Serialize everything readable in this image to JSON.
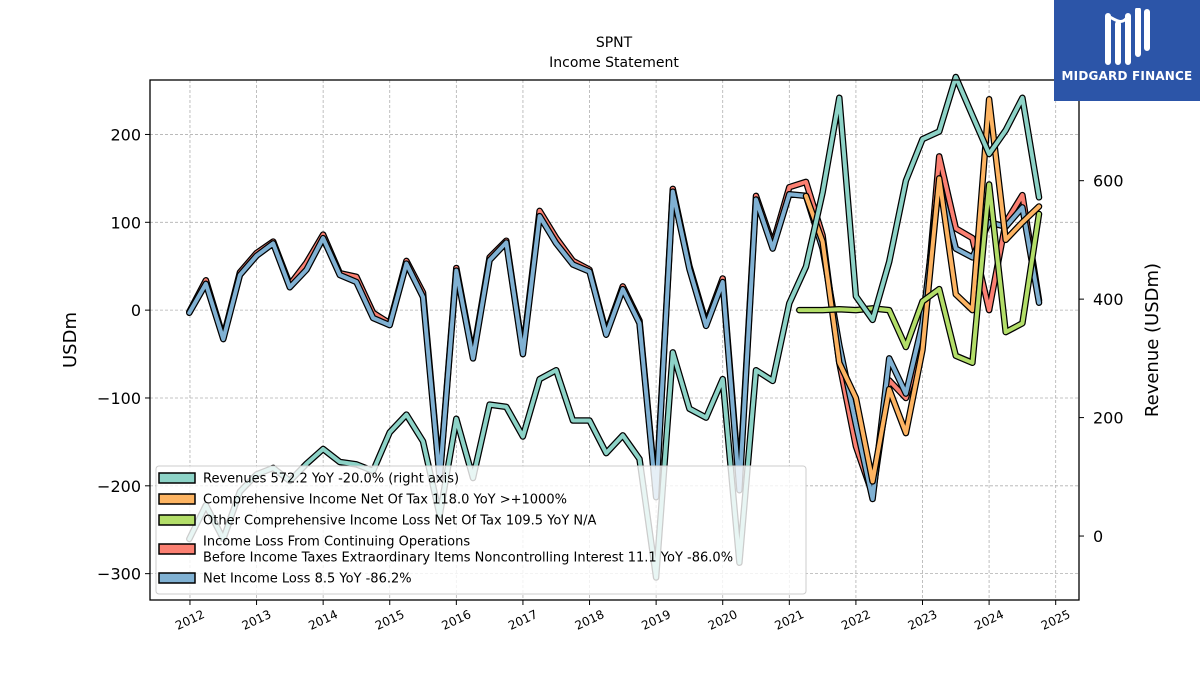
{
  "chart_data": {
    "type": "line",
    "title": "SPNT",
    "subtitle": "Income Statement",
    "ylabel": "USDm",
    "y2label": "Revenue (USDm)",
    "ylim": [
      -330,
      262
    ],
    "y2lim": [
      -108,
      770
    ],
    "yticks": [
      -300,
      -200,
      -100,
      0,
      100,
      200
    ],
    "yticklabels": [
      "−300",
      "−200",
      "−100",
      "0",
      "100",
      "200"
    ],
    "y2ticks": [
      0,
      200,
      400,
      600
    ],
    "y2ticklabels": [
      "0",
      "200",
      "400",
      "600"
    ],
    "xlim": [
      2011.4,
      2025.35
    ],
    "xticks": [
      2012,
      2013,
      2014,
      2015,
      2016,
      2017,
      2018,
      2019,
      2020,
      2021,
      2022,
      2023,
      2024,
      2025
    ],
    "xticklabels": [
      "2012",
      "2013",
      "2014",
      "2015",
      "2016",
      "2017",
      "2018",
      "2019",
      "2020",
      "2021",
      "2022",
      "2023",
      "2024",
      "2025"
    ],
    "grid": true,
    "legend_placement": "lower-left",
    "series": [
      {
        "name": "Revenues  572.2 YoY -20.0% (right axis)",
        "axis": "right",
        "color": "#8dd3c7",
        "x": [
          2011.99,
          2012.24,
          2012.5,
          2012.75,
          2013.0,
          2013.25,
          2013.5,
          2013.75,
          2014.0,
          2014.25,
          2014.5,
          2014.75,
          2015.0,
          2015.25,
          2015.5,
          2015.75,
          2016.0,
          2016.25,
          2016.5,
          2016.75,
          2017.0,
          2017.25,
          2017.5,
          2017.75,
          2018.0,
          2018.25,
          2018.5,
          2018.75,
          2019.0,
          2019.25,
          2019.5,
          2019.75,
          2020.0,
          2020.25,
          2020.5,
          2020.75,
          2021.0,
          2021.25,
          2021.5,
          2021.75,
          2022.0,
          2022.25,
          2022.5,
          2022.75,
          2023.0,
          2023.25,
          2023.5,
          2023.75,
          2024.0,
          2024.25,
          2024.5,
          2024.75
        ],
        "values": [
          -5,
          52,
          -5,
          75,
          104,
          115,
          93,
          122,
          147,
          125,
          121,
          110,
          175,
          205,
          160,
          35,
          198,
          98,
          222,
          218,
          168,
          265,
          280,
          195,
          195,
          140,
          170,
          130,
          -70,
          310,
          215,
          200,
          265,
          -45,
          280,
          262,
          393,
          455,
          580,
          740,
          405,
          365,
          463,
          600,
          670,
          683,
          775,
          710,
          645,
          685,
          740,
          572
        ]
      },
      {
        "name": "Comprehensive Income Net Of Tax  118.0 YoY >+1000%",
        "axis": "left",
        "color": "#fdb462",
        "x": [
          2021.25,
          2021.5,
          2021.75,
          2022.0,
          2022.25,
          2022.5,
          2022.75,
          2023.0,
          2023.25,
          2023.5,
          2023.75,
          2024.0,
          2024.25,
          2024.5,
          2024.75
        ],
        "values": [
          130,
          78,
          -60,
          -100,
          -195,
          -90,
          -140,
          -45,
          150,
          18,
          0,
          240,
          80,
          100,
          118
        ]
      },
      {
        "name": "Other Comprehensive Income Loss Net Of Tax  109.5 YoY N/A",
        "axis": "left",
        "color": "#b3de69",
        "x": [
          2021.15,
          2021.5,
          2021.75,
          2022.0,
          2022.25,
          2022.5,
          2022.75,
          2023.0,
          2023.25,
          2023.5,
          2023.75,
          2024.0,
          2024.25,
          2024.5,
          2024.75
        ],
        "values": [
          0,
          0,
          1,
          0,
          2,
          0,
          -42,
          10,
          24,
          -52,
          -60,
          143,
          -25,
          -15,
          109.5
        ]
      },
      {
        "name": "Income Loss From Continuing Operations\nBefore Income Taxes Extraordinary Items Noncontrolling Interest  11.1 YoY -86.0%",
        "axis": "left",
        "color": "#fb8072",
        "x": [
          2011.99,
          2012.24,
          2012.5,
          2012.75,
          2013.0,
          2013.25,
          2013.5,
          2013.75,
          2014.0,
          2014.25,
          2014.5,
          2014.75,
          2015.0,
          2015.25,
          2015.5,
          2015.75,
          2016.0,
          2016.25,
          2016.5,
          2016.75,
          2017.0,
          2017.25,
          2017.5,
          2017.75,
          2018.0,
          2018.25,
          2018.5,
          2018.75,
          2019.0,
          2019.25,
          2019.5,
          2019.75,
          2020.0,
          2020.25,
          2020.5,
          2020.75,
          2021.0,
          2021.25,
          2021.5,
          2021.75,
          2022.0,
          2022.25,
          2022.5,
          2022.75,
          2023.0,
          2023.25,
          2023.5,
          2023.75,
          2024.0,
          2024.25,
          2024.5,
          2024.75
        ],
        "values": [
          -2,
          34,
          -31,
          43,
          65,
          78,
          29,
          54,
          86,
          42,
          38,
          -3,
          -15,
          56,
          20,
          -190,
          48,
          -52,
          60,
          79,
          -48,
          113,
          82,
          56,
          46,
          -26,
          27,
          -12,
          -210,
          138,
          50,
          -15,
          36,
          -200,
          130,
          75,
          140,
          146,
          85,
          -60,
          -155,
          -210,
          -80,
          -100,
          -40,
          175,
          93,
          82,
          0,
          100,
          131,
          11.1
        ]
      },
      {
        "name": "Net Income Loss  8.5 YoY -86.2%",
        "axis": "left",
        "color": "#80b1d3",
        "x": [
          2011.99,
          2012.24,
          2012.5,
          2012.75,
          2013.0,
          2013.25,
          2013.5,
          2013.75,
          2014.0,
          2014.25,
          2014.5,
          2014.75,
          2015.0,
          2015.25,
          2015.5,
          2015.75,
          2016.0,
          2016.25,
          2016.5,
          2016.75,
          2017.0,
          2017.25,
          2017.5,
          2017.75,
          2018.0,
          2018.25,
          2018.5,
          2018.75,
          2019.0,
          2019.25,
          2019.5,
          2019.75,
          2020.0,
          2020.25,
          2020.5,
          2020.75,
          2021.0,
          2021.25,
          2021.5,
          2021.75,
          2022.0,
          2022.25,
          2022.5,
          2022.75,
          2023.0,
          2023.25,
          2023.5,
          2023.75,
          2024.0,
          2024.25,
          2024.5,
          2024.75
        ],
        "values": [
          -3,
          30,
          -33,
          40,
          62,
          76,
          26,
          46,
          82,
          40,
          32,
          -9,
          -17,
          53,
          15,
          -192,
          45,
          -55,
          57,
          77,
          -50,
          107,
          76,
          52,
          44,
          -28,
          24,
          -15,
          -213,
          135,
          47,
          -18,
          32,
          -205,
          126,
          70,
          132,
          130,
          70,
          -40,
          -130,
          -215,
          -55,
          -95,
          -15,
          145,
          70,
          60,
          100,
          95,
          117,
          8.5
        ]
      }
    ]
  },
  "logo": {
    "text": "MIDGARD FINANCE",
    "background": "#2c55a8"
  }
}
